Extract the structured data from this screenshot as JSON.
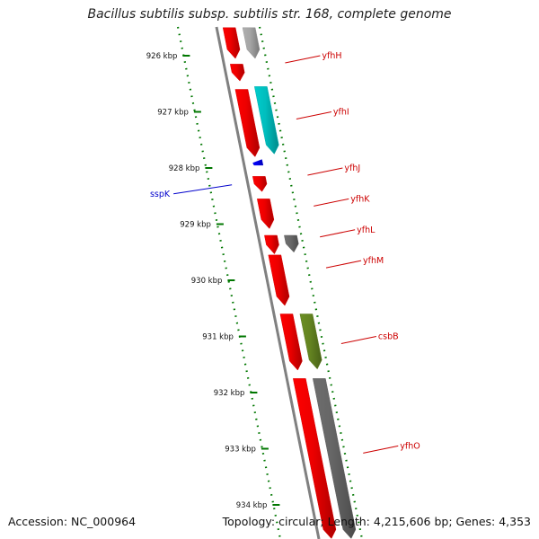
{
  "title": "Bacillus subtilis subsp. subtilis str. 168, complete genome",
  "accession": "Accession: NC_000964",
  "summary": "Topology: circular; Length: 4,215,606 bp; Genes: 4,353",
  "colors": {
    "forward_cds": "#ff0000",
    "reverse_cds_default": "#808080",
    "label_forward": "#cc0000",
    "label_reverse": "#0000cc",
    "axis_ticks": "#007700",
    "backbone": "#808080"
  },
  "axis": {
    "unit": "kbp",
    "ticks": [
      {
        "label": "926 kbp",
        "kbp": 926
      },
      {
        "label": "927 kbp",
        "kbp": 927
      },
      {
        "label": "928 kbp",
        "kbp": 928
      },
      {
        "label": "929 kbp",
        "kbp": 929
      },
      {
        "label": "930 kbp",
        "kbp": 930
      },
      {
        "label": "931 kbp",
        "kbp": 931
      },
      {
        "label": "932 kbp",
        "kbp": 932
      },
      {
        "label": "933 kbp",
        "kbp": 933
      },
      {
        "label": "934 kbp",
        "kbp": 934
      }
    ]
  },
  "genes": [
    {
      "name": "yfhH",
      "strand": "+",
      "label_kbp": 926.0
    },
    {
      "name": "yfhI",
      "strand": "+",
      "label_kbp": 927.0
    },
    {
      "name": "yfhJ",
      "strand": "+",
      "label_kbp": 928.0
    },
    {
      "name": "yfhK",
      "strand": "+",
      "label_kbp": 928.55
    },
    {
      "name": "yfhL",
      "strand": "+",
      "label_kbp": 929.1
    },
    {
      "name": "yfhM",
      "strand": "+",
      "label_kbp": 929.65
    },
    {
      "name": "csbB",
      "strand": "+",
      "label_kbp": 931.0
    },
    {
      "name": "yfhO",
      "strand": "+",
      "label_kbp": 932.95
    },
    {
      "name": "sspK",
      "strand": "-",
      "label_kbp": 928.3
    }
  ],
  "features": [
    {
      "track": "cds_fwd",
      "start": 925.5,
      "end": 926.05,
      "color": "#ff0000"
    },
    {
      "track": "cds_fwd",
      "start": 926.15,
      "end": 926.45,
      "color": "#ff0000"
    },
    {
      "track": "cds_fwd",
      "start": 926.6,
      "end": 927.8,
      "color": "#ff0000"
    },
    {
      "track": "cds_fwd",
      "start": 928.15,
      "end": 928.42,
      "color": "#ff0000"
    },
    {
      "track": "cds_fwd",
      "start": 928.55,
      "end": 929.08,
      "color": "#ff0000"
    },
    {
      "track": "cds_fwd",
      "start": 929.2,
      "end": 929.53,
      "color": "#ff0000"
    },
    {
      "track": "cds_fwd",
      "start": 929.55,
      "end": 930.45,
      "color": "#ff0000"
    },
    {
      "track": "cds_fwd",
      "start": 930.6,
      "end": 931.6,
      "color": "#ff0000"
    },
    {
      "track": "cds_fwd",
      "start": 931.75,
      "end": 934.6,
      "color": "#ff0000"
    },
    {
      "track": "cds_rev",
      "start": 927.85,
      "end": 927.95,
      "color": "#0000ff"
    },
    {
      "track": "gene_fwd",
      "start": 925.5,
      "end": 926.05,
      "color": "#b0b0b0"
    },
    {
      "track": "gene_fwd",
      "start": 926.55,
      "end": 927.75,
      "color": "#00cccc"
    },
    {
      "track": "gene_fwd",
      "start": 929.2,
      "end": 929.5,
      "color": "#707070"
    },
    {
      "track": "gene_fwd",
      "start": 930.6,
      "end": 931.58,
      "color": "#6b8e23"
    },
    {
      "track": "gene_fwd",
      "start": 931.75,
      "end": 934.6,
      "color": "#6e6e6e"
    }
  ]
}
